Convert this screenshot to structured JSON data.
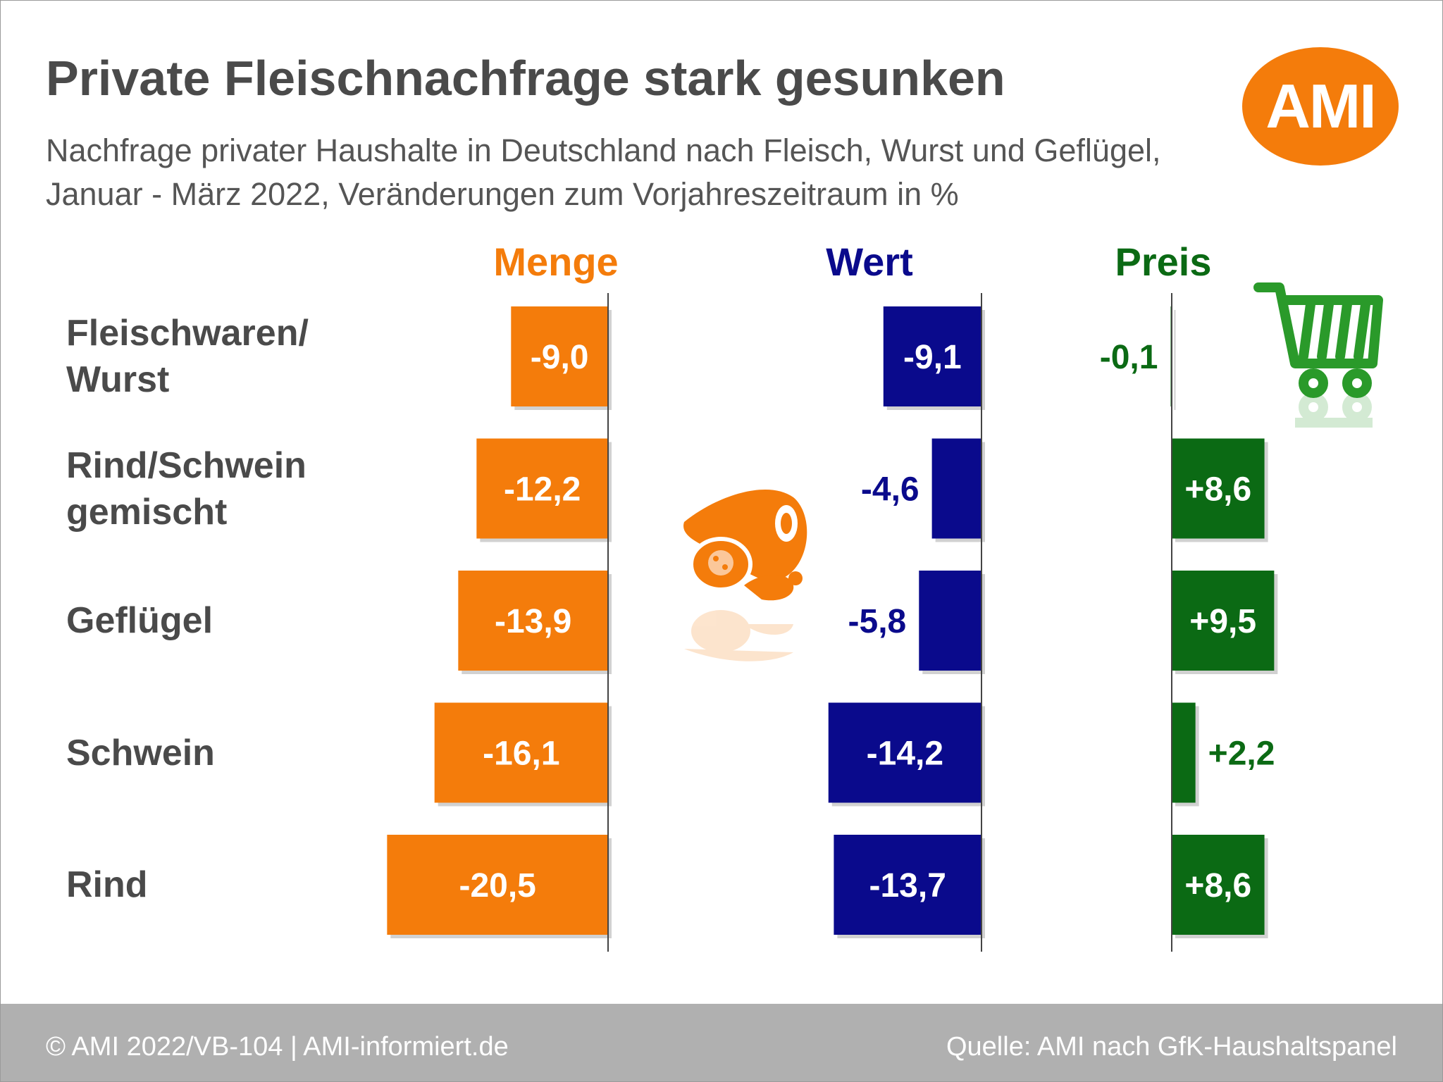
{
  "header": {
    "title": "Private Fleischnachfrage stark gesunken",
    "subtitle": "Nachfrage privater Haushalte in Deutschland nach Fleisch, Wurst und Geflügel, Januar - März 2022, Veränderungen zum Vorjahreszeitraum in %",
    "logo_text": "AMI"
  },
  "footer": {
    "left": "© AMI 2022/VB-104 | AMI-informiert.de",
    "right": "Quelle: AMI nach GfK-Haushaltspanel"
  },
  "icons": [
    "shopping-cart-icon",
    "meat-products-icon"
  ],
  "chart_data": {
    "type": "bar",
    "orientation": "horizontal",
    "categories": [
      "Fleischwaren/\nWurst",
      "Rind/Schwein\ngemischt",
      "Geflügel",
      "Schwein",
      "Rind"
    ],
    "series": [
      {
        "name": "Menge",
        "color": "#f47c0b",
        "values": [
          -9.0,
          -12.2,
          -13.9,
          -16.1,
          -20.5
        ],
        "labels": [
          "-9,0",
          "-12,2",
          "-13,9",
          "-16,1",
          "-20,5"
        ]
      },
      {
        "name": "Wert",
        "color": "#0a0a8c",
        "values": [
          -9.1,
          -4.6,
          -5.8,
          -14.2,
          -13.7
        ],
        "labels": [
          "-9,1",
          "-4,6",
          "-5,8",
          "-14,2",
          "-13,7"
        ]
      },
      {
        "name": "Preis",
        "color": "#0b6a14",
        "values": [
          -0.1,
          8.6,
          9.5,
          2.2,
          8.6
        ],
        "labels": [
          "-0,1",
          "+8,6",
          "+9,5",
          "+2,2",
          "+8,6"
        ]
      }
    ],
    "legend": "column headers above each panel",
    "grid": false
  }
}
